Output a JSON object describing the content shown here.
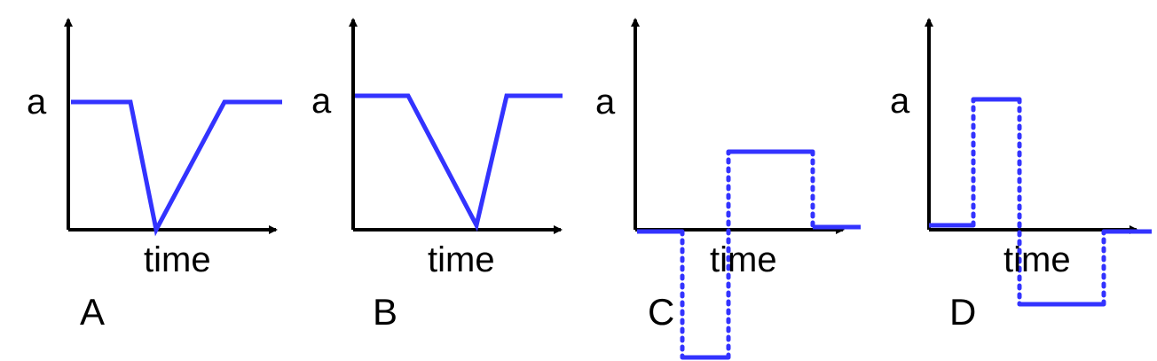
{
  "colors": {
    "curve": "#3333ff",
    "axis": "#000000",
    "background": "#ffffff"
  },
  "panels": [
    {
      "panel_label": "A",
      "y_axis_label": "a",
      "x_axis_label": "time"
    },
    {
      "panel_label": "B",
      "y_axis_label": "a",
      "x_axis_label": "time"
    },
    {
      "panel_label": "C",
      "y_axis_label": "a",
      "x_axis_label": "time"
    },
    {
      "panel_label": "D",
      "y_axis_label": "a",
      "x_axis_label": "time"
    }
  ]
}
